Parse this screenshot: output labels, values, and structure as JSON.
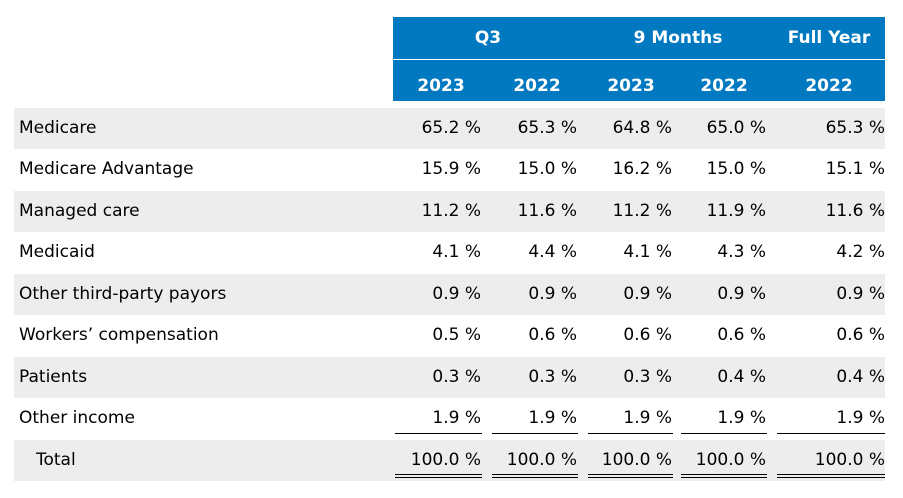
{
  "header": {
    "groups": [
      "Q3",
      "9 Months",
      "Full Year"
    ],
    "years": [
      "2023",
      "2022",
      "2023",
      "2022",
      "2022"
    ]
  },
  "rows": [
    {
      "label": "Medicare",
      "values": [
        "65.2 %",
        "65.3 %",
        "64.8 %",
        "65.0 %",
        "65.3 %"
      ]
    },
    {
      "label": "Medicare Advantage",
      "values": [
        "15.9 %",
        "15.0 %",
        "16.2 %",
        "15.0 %",
        "15.1 %"
      ]
    },
    {
      "label": "Managed care",
      "values": [
        "11.2 %",
        "11.6 %",
        "11.2 %",
        "11.9 %",
        "11.6 %"
      ]
    },
    {
      "label": "Medicaid",
      "values": [
        "4.1 %",
        "4.4 %",
        "4.1 %",
        "4.3 %",
        "4.2 %"
      ]
    },
    {
      "label": "Other third-party payors",
      "values": [
        "0.9 %",
        "0.9 %",
        "0.9 %",
        "0.9 %",
        "0.9 %"
      ]
    },
    {
      "label": "Workers’ compensation",
      "values": [
        "0.5 %",
        "0.6 %",
        "0.6 %",
        "0.6 %",
        "0.6 %"
      ]
    },
    {
      "label": "Patients",
      "values": [
        "0.3 %",
        "0.3 %",
        "0.3 %",
        "0.4 %",
        "0.4 %"
      ]
    },
    {
      "label": "Other income",
      "values": [
        "1.9 %",
        "1.9 %",
        "1.9 %",
        "1.9 %",
        "1.9 %"
      ]
    }
  ],
  "total": {
    "label": "Total",
    "values": [
      "100.0 %",
      "100.0 %",
      "100.0 %",
      "100.0 %",
      "100.0 %"
    ]
  },
  "colors": {
    "header_bg": "#0079c1",
    "row_shade": "#ededed"
  }
}
